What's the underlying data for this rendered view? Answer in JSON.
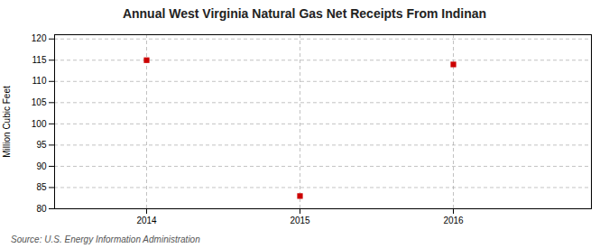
{
  "chart_data": {
    "type": "scatter",
    "title": "Annual West Virginia Natural Gas Net Receipts From Indinan",
    "ylabel": "Million Cubic Feet",
    "source": "Source: U.S. Energy Information Administration",
    "x": [
      2014,
      2015,
      2016
    ],
    "values": [
      115,
      83,
      114
    ],
    "color": "#cc0000",
    "marker": "square",
    "xlim": [
      2013.4,
      2016.9
    ],
    "ylim": [
      80,
      121
    ],
    "xticks": [
      2014,
      2015,
      2016
    ],
    "yticks": [
      80,
      85,
      90,
      95,
      100,
      105,
      110,
      115,
      120
    ],
    "grid": true
  }
}
